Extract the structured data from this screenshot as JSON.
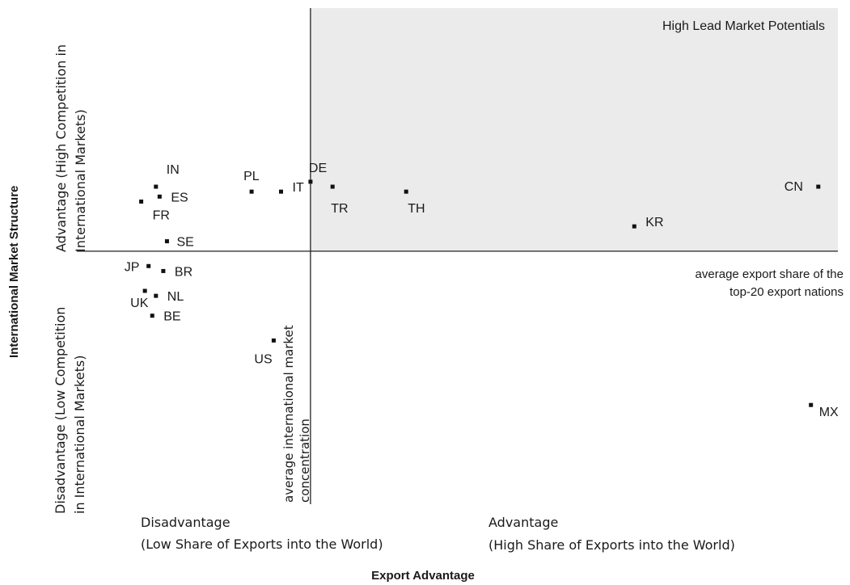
{
  "chart_data": {
    "type": "scatter",
    "x_axis_title": "Export Advantage",
    "y_axis_title": "International Market Structure",
    "x_low_label": [
      "Disadvantage",
      "(Low Share of Exports into the World)"
    ],
    "x_high_label": [
      "Advantage",
      "(High Share of Exports into the World)"
    ],
    "y_high_label": [
      "Advantage (High Competition in",
      "International Markets)"
    ],
    "y_low_label": [
      "Disadvantage (Low Competition",
      "in International Markets)"
    ],
    "quadrant_label": "High Lead Market Potentials",
    "h_reference_label": [
      "average export share of the",
      "top-20 export nations"
    ],
    "v_reference_label": [
      "average international market",
      "concentration"
    ],
    "grid": false,
    "legend": "none",
    "xlim": [
      0,
      100
    ],
    "ylim": [
      0,
      100
    ],
    "x_reference": 29,
    "y_reference": 51,
    "points": [
      {
        "label": "CN",
        "x": 98,
        "y": 64
      },
      {
        "label": "MX",
        "x": 97,
        "y": 20
      },
      {
        "label": "KR",
        "x": 73,
        "y": 56
      },
      {
        "label": "TH",
        "x": 42,
        "y": 63
      },
      {
        "label": "TR",
        "x": 32,
        "y": 64
      },
      {
        "label": "DE",
        "x": 29,
        "y": 65
      },
      {
        "label": "IT",
        "x": 25,
        "y": 63
      },
      {
        "label": "PL",
        "x": 21,
        "y": 63
      },
      {
        "label": "US",
        "x": 24,
        "y": 33
      },
      {
        "label": "IN",
        "x": 8,
        "y": 64
      },
      {
        "label": "ES",
        "x": 8.5,
        "y": 62
      },
      {
        "label": "FR",
        "x": 6,
        "y": 61
      },
      {
        "label": "SE",
        "x": 9.5,
        "y": 53
      },
      {
        "label": "JP",
        "x": 7,
        "y": 48
      },
      {
        "label": "BR",
        "x": 9,
        "y": 47
      },
      {
        "label": "UK",
        "x": 6.5,
        "y": 43
      },
      {
        "label": "NL",
        "x": 8,
        "y": 42
      },
      {
        "label": "BE",
        "x": 7.5,
        "y": 38
      }
    ]
  }
}
